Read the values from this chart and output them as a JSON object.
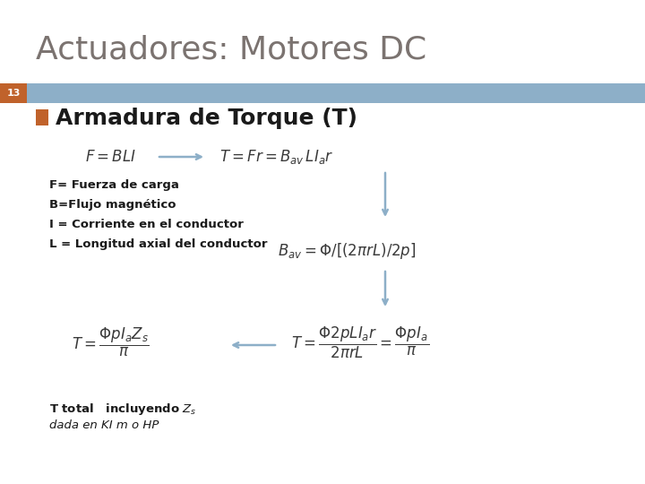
{
  "title": "Actuadores: Motores DC",
  "slide_number": "13",
  "section_heading": "Armadura de Torque (T)",
  "title_color": "#7B7370",
  "title_fontsize": 26,
  "heading_fontsize": 18,
  "background_color": "#FFFFFF",
  "number_bar_color": "#C0622B",
  "heading_bar_color": "#8DAFC8",
  "labels": [
    "F= Fuerza de carga",
    "B=Flujo magnético",
    "I = Corriente en el conductor",
    "L = Longitud axial del conductor"
  ]
}
